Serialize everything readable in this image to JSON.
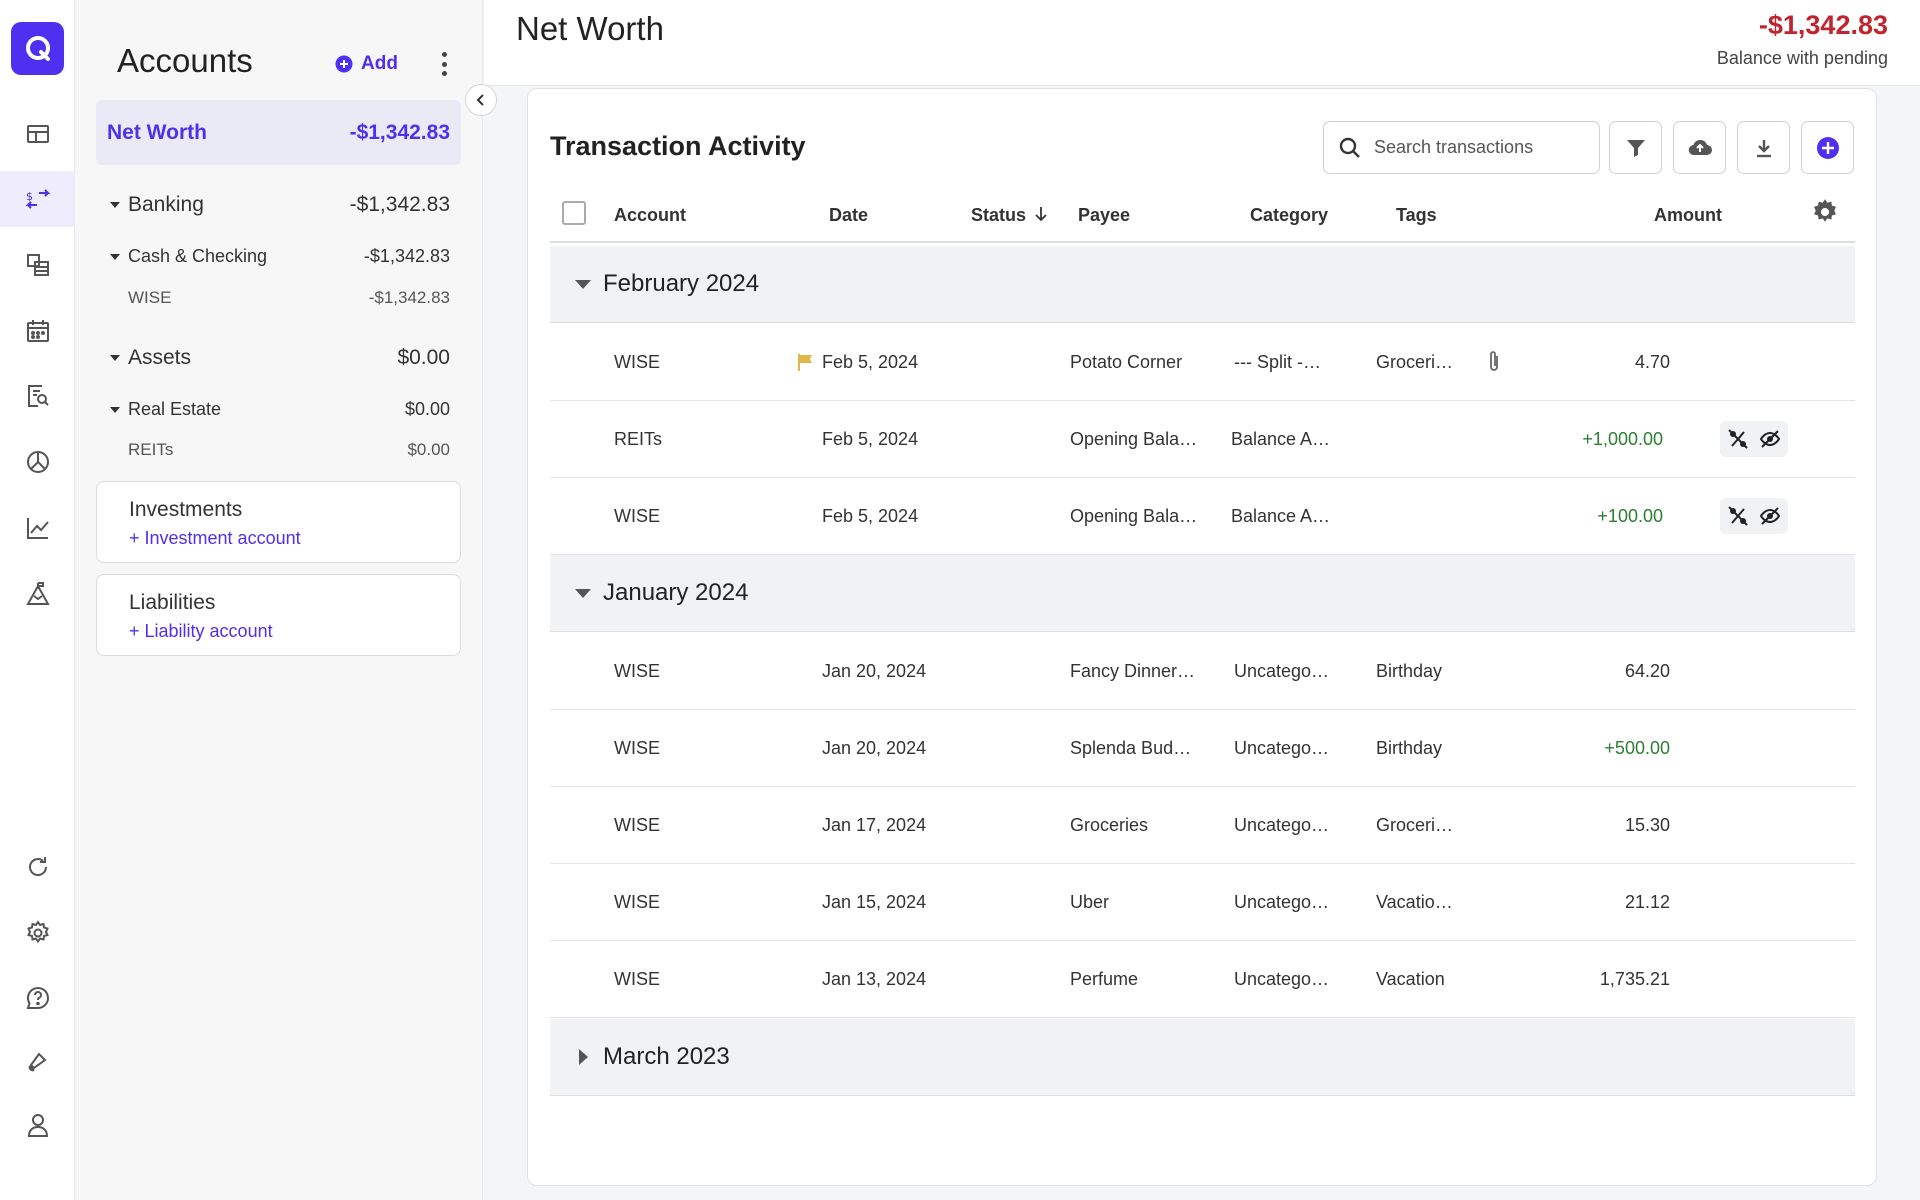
{
  "header": {
    "title": "Net Worth",
    "balance": "-$1,342.83",
    "balance_label": "Balance with pending"
  },
  "accounts_panel": {
    "title": "Accounts",
    "add_label": "Add",
    "net_worth": {
      "label": "Net Worth",
      "value": "-$1,342.83"
    },
    "banking": {
      "label": "Banking",
      "value": "-$1,342.83"
    },
    "cash_checking": {
      "label": "Cash & Checking",
      "value": "-$1,342.83"
    },
    "wise": {
      "label": "WISE",
      "value": "-$1,342.83"
    },
    "assets": {
      "label": "Assets",
      "value": "$0.00"
    },
    "real_estate": {
      "label": "Real Estate",
      "value": "$0.00"
    },
    "reits": {
      "label": "REITs",
      "value": "$0.00"
    },
    "investments": {
      "label": "Investments",
      "link": "+ Investment account"
    },
    "liabilities": {
      "label": "Liabilities",
      "link": "+ Liability account"
    }
  },
  "activity": {
    "title": "Transaction Activity",
    "search_placeholder": "Search transactions",
    "columns": {
      "account": "Account",
      "date": "Date",
      "status": "Status",
      "payee": "Payee",
      "category": "Category",
      "tags": "Tags",
      "amount": "Amount"
    },
    "groups": [
      {
        "title": "February 2024",
        "rows": [
          {
            "account": "WISE",
            "date": "Feb 5, 2024",
            "payee": "Potato Corner",
            "category": "--- Split -…",
            "tags": "Groceri…",
            "amount": "4.70"
          },
          {
            "account": "REITs",
            "date": "Feb 5, 2024",
            "payee": "Opening Bala…",
            "category": "Balance A…",
            "tags": "",
            "amount": "+1,000.00"
          },
          {
            "account": "WISE",
            "date": "Feb 5, 2024",
            "payee": "Opening Bala…",
            "category": "Balance A…",
            "tags": "",
            "amount": "+100.00"
          }
        ]
      },
      {
        "title": "January 2024",
        "rows": [
          {
            "account": "WISE",
            "date": "Jan 20, 2024",
            "payee": "Fancy Dinner…",
            "category": "Uncatego…",
            "tags": "Birthday",
            "amount": "64.20"
          },
          {
            "account": "WISE",
            "date": "Jan 20, 2024",
            "payee": "Splenda Bud…",
            "category": "Uncatego…",
            "tags": "Birthday",
            "amount": "+500.00"
          },
          {
            "account": "WISE",
            "date": "Jan 17, 2024",
            "payee": "Groceries",
            "category": "Uncatego…",
            "tags": "Groceri…",
            "amount": "15.30"
          },
          {
            "account": "WISE",
            "date": "Jan 15, 2024",
            "payee": "Uber",
            "category": "Uncatego…",
            "tags": "Vacatio…",
            "amount": "21.12"
          },
          {
            "account": "WISE",
            "date": "Jan 13, 2024",
            "payee": "Perfume",
            "category": "Uncatego…",
            "tags": "Vacation",
            "amount": "1,735.21"
          }
        ]
      },
      {
        "title": "March 2023",
        "rows": []
      }
    ]
  },
  "colors": {
    "accent": "#4f2ff0",
    "negative": "#c0242f",
    "positive": "#2e7d32",
    "flag": "#e0b84a"
  },
  "icons": [
    "logo-icon",
    "dashboard-icon",
    "transactions-icon",
    "accounts-icon",
    "calendar-icon",
    "reports-icon",
    "budget-icon",
    "investments-chart-icon",
    "planning-icon",
    "sync-icon",
    "settings-icon",
    "help-icon",
    "notifications-icon",
    "profile-icon",
    "search-icon",
    "filter-icon",
    "cloud-upload-icon",
    "download-icon",
    "add-circle-icon",
    "gear-icon",
    "flag-icon",
    "paperclip-icon",
    "percent-off-icon",
    "eye-off-icon"
  ]
}
